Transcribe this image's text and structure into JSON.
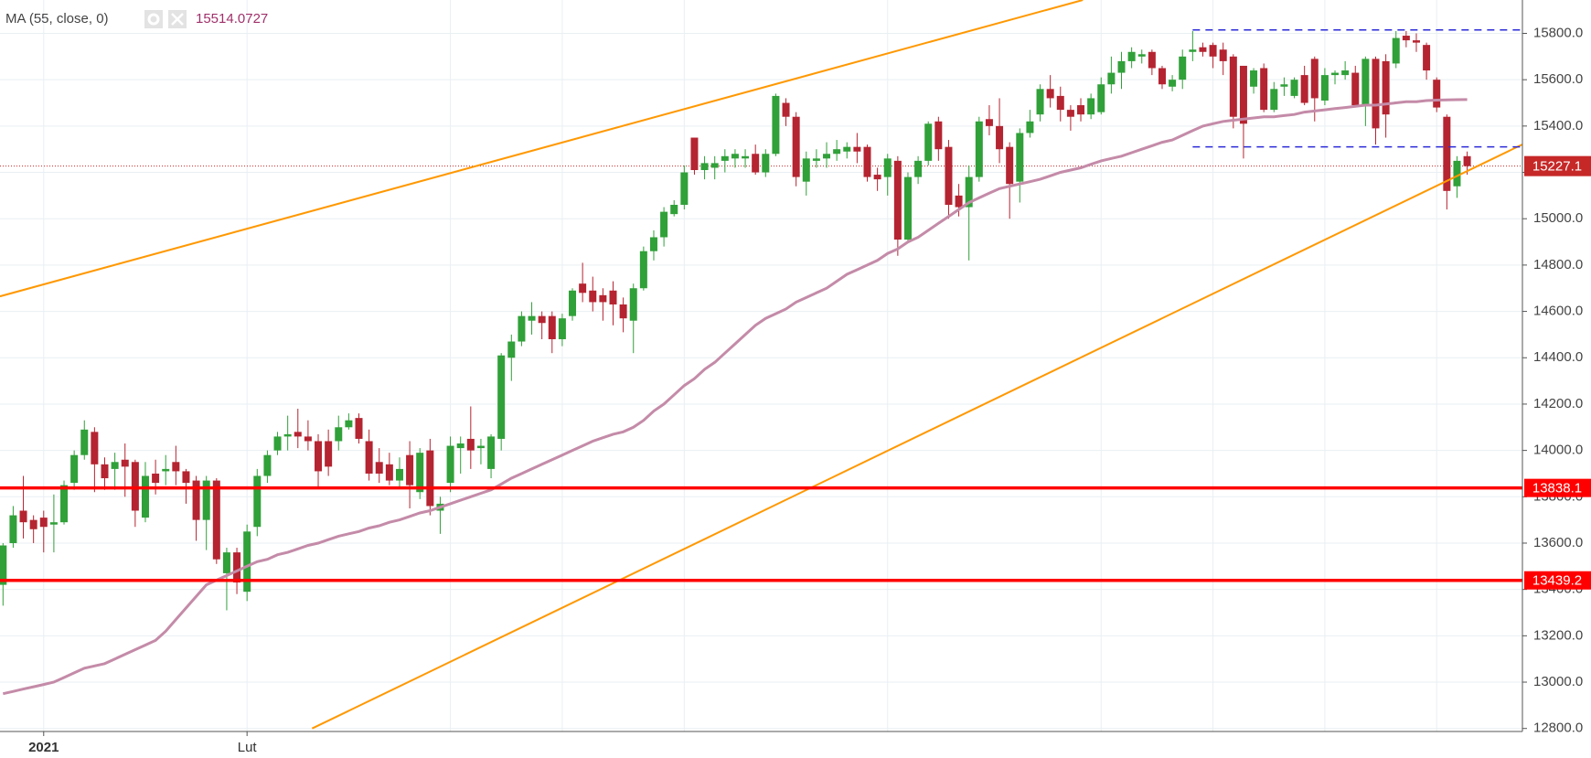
{
  "chart_data": {
    "type": "candlestick",
    "indicator": {
      "label": "MA (55, close, 0)",
      "color": "#c48ba8",
      "label_color": "#a0306a"
    },
    "categories": [
      null,
      null,
      null,
      null,
      "2021",
      null,
      null,
      null,
      null,
      null,
      null,
      null,
      null,
      null,
      null,
      null,
      null,
      null,
      null,
      null,
      null,
      null,
      null,
      null,
      "Lut",
      null,
      null,
      null,
      null,
      null,
      null,
      null,
      null,
      null,
      null,
      null,
      null,
      null,
      null,
      null,
      null,
      null,
      null,
      null,
      null,
      null,
      null,
      null,
      null,
      null,
      null,
      null,
      null,
      null,
      null,
      null,
      null,
      null,
      null,
      null,
      null,
      null,
      null,
      null,
      null,
      null,
      null,
      null,
      null,
      null,
      null,
      null,
      null,
      null,
      null,
      null,
      null,
      null,
      null,
      null,
      null,
      null,
      null,
      null,
      null,
      null,
      null,
      null,
      null,
      null,
      null,
      null,
      null,
      null,
      null,
      null,
      null,
      null,
      null,
      null,
      null,
      null,
      null,
      null,
      null,
      null,
      null,
      null,
      null,
      null,
      null,
      null,
      null,
      null,
      null,
      null,
      null,
      null,
      null,
      null,
      null,
      null,
      null,
      null,
      null,
      null,
      null,
      null,
      null,
      null,
      null,
      null,
      null,
      null,
      null,
      null,
      null,
      null,
      null,
      null,
      null,
      null,
      null,
      null,
      null
    ],
    "up_color": "#30a039",
    "down_color": "#b52431",
    "open": [
      13420,
      13600,
      13740,
      13700,
      13710,
      13680,
      13690,
      13860,
      13980,
      14080,
      13940,
      13920,
      13960,
      13950,
      13710,
      13900,
      13910,
      13950,
      13910,
      13870,
      13700,
      13870,
      13470,
      13560,
      13390,
      13670,
      13890,
      14000,
      14060,
      14080,
      14060,
      14040,
      14040,
      14040,
      14100,
      14140,
      14040,
      13950,
      13940,
      13870,
      13980,
      13820,
      14000,
      13740,
      13860,
      14010,
      14050,
      14010,
      13920,
      14050,
      14400,
      14470,
      14560,
      14580,
      14580,
      14480,
      14580,
      14720,
      14690,
      14670,
      14690,
      14630,
      14560,
      14700,
      14860,
      14920,
      15020,
      15060,
      15350,
      15210,
      15220,
      15250,
      15260,
      15260,
      15280,
      15200,
      15280,
      15500,
      15440,
      15160,
      15250,
      15260,
      15280,
      15290,
      15310,
      15310,
      15190,
      15180,
      15250,
      14910,
      15180,
      15250,
      15420,
      15310,
      15100,
      15050,
      15180,
      15430,
      15400,
      15310,
      15160,
      15370,
      15450,
      15560,
      15530,
      15470,
      15490,
      15450,
      15460,
      15580,
      15630,
      15680,
      15700,
      15720,
      15650,
      15570,
      15600,
      15720,
      15740,
      15750,
      15730,
      15700,
      15660,
      15570,
      15650,
      15470,
      15570,
      15530,
      15620,
      15690,
      15510,
      15620,
      15620,
      15630,
      15490,
      15690,
      15680,
      15670,
      15790,
      15770,
      15750,
      15600,
      15440,
      15140,
      15270
    ],
    "high": [
      13600,
      13760,
      13890,
      13720,
      13740,
      13810,
      13870,
      14000,
      14130,
      14100,
      13970,
      13990,
      14030,
      13960,
      13950,
      13960,
      13980,
      14020,
      13920,
      13890,
      13890,
      13880,
      13580,
      13580,
      13680,
      13920,
      14000,
      14080,
      14150,
      14180,
      14130,
      14070,
      14090,
      14150,
      14160,
      14160,
      14090,
      14010,
      13990,
      13970,
      14040,
      14010,
      14050,
      13800,
      14060,
      14060,
      14190,
      14050,
      14070,
      14420,
      14500,
      14600,
      14640,
      14600,
      14600,
      14590,
      14700,
      14810,
      14750,
      14700,
      14730,
      14660,
      14720,
      14880,
      14950,
      15050,
      15080,
      15230,
      15350,
      15270,
      15270,
      15300,
      15300,
      15300,
      15320,
      15300,
      15540,
      15520,
      15460,
      15290,
      15300,
      15330,
      15340,
      15330,
      15370,
      15320,
      15220,
      15280,
      15270,
      15200,
      15270,
      15420,
      15440,
      15340,
      15150,
      15230,
      15440,
      15490,
      15520,
      15330,
      15390,
      15470,
      15580,
      15620,
      15570,
      15490,
      15520,
      15540,
      15610,
      15700,
      15720,
      15740,
      15730,
      15730,
      15660,
      15620,
      15730,
      15810,
      15760,
      15760,
      15760,
      15710,
      15660,
      15650,
      15670,
      15590,
      15610,
      15610,
      15660,
      15700,
      15650,
      15640,
      15680,
      15660,
      15700,
      15700,
      15710,
      15810,
      15810,
      15800,
      15760,
      15610,
      15450,
      15270,
      15290
    ],
    "low": [
      13330,
      13580,
      13620,
      13600,
      13560,
      13560,
      13680,
      13830,
      13960,
      13820,
      13830,
      13830,
      13800,
      13670,
      13690,
      13810,
      13850,
      13850,
      13770,
      13610,
      13570,
      13510,
      13310,
      13380,
      13350,
      13630,
      13860,
      13980,
      14000,
      14010,
      14000,
      13840,
      13890,
      14000,
      14090,
      14030,
      13870,
      13860,
      13850,
      13840,
      13750,
      13790,
      13720,
      13640,
      13820,
      13900,
      13920,
      13940,
      13880,
      14000,
      14300,
      14450,
      14500,
      14480,
      14420,
      14450,
      14560,
      14640,
      14600,
      14560,
      14540,
      14510,
      14420,
      14690,
      14820,
      14880,
      15010,
      15040,
      15190,
      15170,
      15170,
      15200,
      15220,
      15220,
      15190,
      15180,
      15270,
      15400,
      15140,
      15100,
      15220,
      15220,
      15250,
      15260,
      15240,
      15160,
      15120,
      15100,
      14840,
      14900,
      15150,
      15230,
      15250,
      15000,
      15010,
      14820,
      15160,
      15360,
      15240,
      15000,
      15070,
      15350,
      15420,
      15480,
      15420,
      15380,
      15420,
      15430,
      15450,
      15540,
      15560,
      15650,
      15670,
      15620,
      15560,
      15550,
      15560,
      15680,
      15700,
      15650,
      15620,
      15390,
      15260,
      15540,
      15460,
      15460,
      15530,
      15520,
      15490,
      15420,
      15490,
      15580,
      15600,
      15480,
      15400,
      15320,
      15350,
      15650,
      15740,
      15720,
      15600,
      15460,
      15040,
      15090,
      15190
    ],
    "close": [
      13590,
      13720,
      13690,
      13660,
      13670,
      13690,
      13850,
      13980,
      14090,
      13940,
      13880,
      13950,
      13930,
      13740,
      13890,
      13860,
      13920,
      13910,
      13860,
      13700,
      13870,
      13530,
      13560,
      13430,
      13650,
      13890,
      13980,
      14060,
      14070,
      14060,
      14040,
      13910,
      13930,
      14100,
      14130,
      14050,
      13900,
      13900,
      13870,
      13920,
      13850,
      13990,
      13760,
      13770,
      14020,
      14030,
      14000,
      14020,
      14060,
      14410,
      14470,
      14580,
      14580,
      14550,
      14480,
      14570,
      14690,
      14680,
      14640,
      14640,
      14630,
      14570,
      14700,
      14860,
      14920,
      15030,
      15060,
      15200,
      15210,
      15240,
      15240,
      15270,
      15280,
      15270,
      15200,
      15280,
      15530,
      15440,
      15180,
      15260,
      15260,
      15280,
      15300,
      15310,
      15290,
      15180,
      15170,
      15260,
      14910,
      15180,
      15250,
      15410,
      15300,
      15060,
      15050,
      15180,
      15420,
      15400,
      15300,
      15150,
      15370,
      15420,
      15560,
      15520,
      15470,
      15440,
      15450,
      15520,
      15580,
      15630,
      15680,
      15720,
      15710,
      15650,
      15580,
      15600,
      15700,
      15730,
      15720,
      15700,
      15680,
      15440,
      15410,
      15640,
      15470,
      15560,
      15580,
      15600,
      15500,
      15520,
      15620,
      15630,
      15640,
      15490,
      15690,
      15390,
      15450,
      15780,
      15770,
      15760,
      15640,
      15480,
      15120,
      15250,
      15227.1
    ],
    "ma": [
      12950,
      12960,
      12970,
      12980,
      12990,
      13000,
      13020,
      13040,
      13060,
      13070,
      13080,
      13100,
      13120,
      13140,
      13160,
      13180,
      13220,
      13270,
      13320,
      13370,
      13420,
      13440,
      13460,
      13480,
      13500,
      13520,
      13530,
      13550,
      13560,
      13575,
      13590,
      13600,
      13615,
      13630,
      13640,
      13650,
      13665,
      13675,
      13690,
      13700,
      13715,
      13730,
      13740,
      13755,
      13770,
      13785,
      13800,
      13815,
      13830,
      13855,
      13880,
      13900,
      13920,
      13940,
      13960,
      13980,
      14000,
      14020,
      14040,
      14055,
      14070,
      14080,
      14100,
      14130,
      14170,
      14200,
      14240,
      14280,
      14310,
      14350,
      14380,
      14420,
      14460,
      14500,
      14540,
      14570,
      14590,
      14610,
      14640,
      14660,
      14680,
      14700,
      14730,
      14760,
      14780,
      14800,
      14820,
      14850,
      14870,
      14900,
      14920,
      14950,
      14980,
      15010,
      15040,
      15070,
      15090,
      15110,
      15130,
      15140,
      15150,
      15160,
      15170,
      15185,
      15200,
      15210,
      15220,
      15235,
      15250,
      15260,
      15270,
      15285,
      15300,
      15315,
      15330,
      15340,
      15360,
      15380,
      15400,
      15410,
      15420,
      15425,
      15430,
      15435,
      15440,
      15440,
      15445,
      15450,
      15460,
      15465,
      15470,
      15475,
      15480,
      15485,
      15490,
      15490,
      15495,
      15500,
      15505,
      15505,
      15510,
      15512,
      15513,
      15514,
      15514.0727
    ],
    "ylim": [
      12787,
      15944
    ],
    "yticks": [
      {
        "value": 12800,
        "label": "12800.0"
      },
      {
        "value": 13000,
        "label": "13000.0"
      },
      {
        "value": 13200,
        "label": "13200.0"
      },
      {
        "value": 13400,
        "label": "13400.0"
      },
      {
        "value": 13600,
        "label": "13600.0"
      },
      {
        "value": 13800,
        "label": "13800.0"
      },
      {
        "value": 14000,
        "label": "14000.0"
      },
      {
        "value": 14200,
        "label": "14200.0"
      },
      {
        "value": 14400,
        "label": "14400.0"
      },
      {
        "value": 14600,
        "label": "14600.0"
      },
      {
        "value": 14800,
        "label": "14800.0"
      },
      {
        "value": 15000,
        "label": "15000.0"
      },
      {
        "value": 15200,
        "label": "15200.0"
      },
      {
        "value": 15400,
        "label": "15400.0"
      },
      {
        "value": 15600,
        "label": "15600.0"
      },
      {
        "value": 15800,
        "label": "15800.0"
      }
    ],
    "xgrid": [
      4,
      24,
      44,
      55,
      67,
      87,
      108,
      119,
      130,
      141
    ],
    "levels": [
      {
        "value": 13838.1,
        "color": "#ff0000"
      },
      {
        "value": 13439.2,
        "color": "#ff0000"
      }
    ],
    "last_price_color": "#c62828",
    "dashed_levels": [
      {
        "value": 15815,
        "from": 117,
        "color": "#2a2ad8"
      },
      {
        "value": 15310,
        "from": 117,
        "color": "#2a2ad8"
      }
    ],
    "trendlines": [
      {
        "from": [
          -0.3,
          14665
        ],
        "to": [
          106.2,
          15944
        ],
        "color": "#ff9800"
      },
      {
        "from": [
          30.4,
          12800
        ],
        "to": [
          149.4,
          15320
        ],
        "color": "#ff9800"
      }
    ],
    "grid": true
  }
}
